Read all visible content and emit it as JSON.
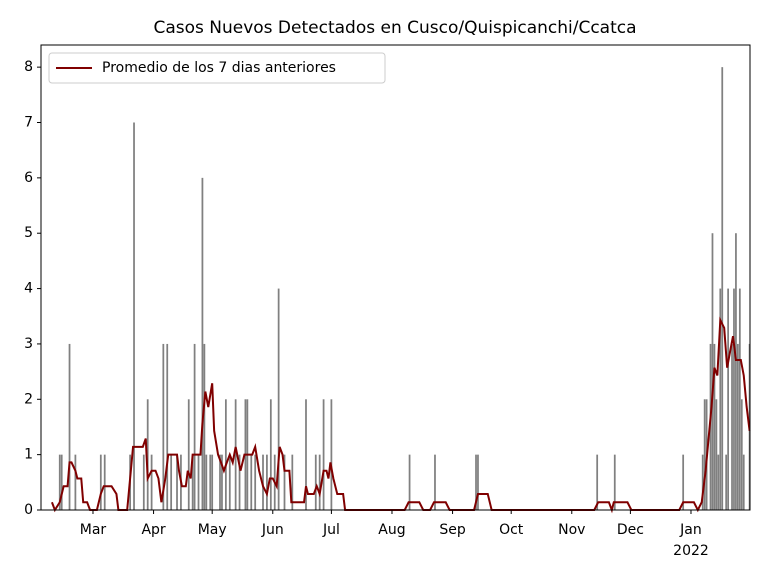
{
  "chart_data": {
    "type": "bar",
    "title": "Casos Nuevos Detectados en Cusco/Quispicanchi/Ccatca",
    "x": [
      -17,
      -16,
      -12,
      -9,
      4,
      6,
      19,
      21,
      26,
      28,
      30,
      36,
      38,
      40,
      43,
      45,
      49,
      51,
      52,
      54,
      56,
      57,
      58,
      60,
      61,
      65,
      66,
      68,
      70,
      73,
      75,
      78,
      79,
      81,
      83,
      87,
      89,
      91,
      93,
      95,
      98,
      102,
      109,
      114,
      116,
      118,
      122,
      162,
      175,
      196,
      197,
      258,
      267,
      302,
      312,
      313,
      314,
      316,
      317,
      318,
      319,
      320,
      321,
      322,
      324,
      325,
      327,
      328,
      329,
      330,
      331,
      332,
      333,
      336
    ],
    "values": [
      1,
      1,
      3,
      1,
      1,
      1,
      1,
      7,
      1,
      2,
      1,
      3,
      3,
      1,
      1,
      1,
      2,
      1,
      3,
      1,
      6,
      3,
      1,
      1,
      1,
      1,
      1,
      2,
      1,
      2,
      1,
      2,
      2,
      1,
      1,
      1,
      1,
      2,
      1,
      4,
      1,
      1,
      2,
      1,
      1,
      2,
      2,
      1,
      1,
      1,
      1,
      1,
      1,
      1,
      1,
      2,
      2,
      3,
      5,
      3,
      2,
      1,
      4,
      8,
      1,
      4,
      3,
      4,
      5,
      3,
      4,
      2,
      1,
      3
    ],
    "color": "#808080",
    "series": [
      {
        "name": "Promedio de los 7 dias anteriores",
        "color": "#800000",
        "x": [
          -21,
          -19.5,
          -17,
          -15,
          -13,
          -12,
          -11,
          -9,
          -8,
          -6,
          -5,
          -3,
          -1.5,
          2,
          4,
          5.5,
          9.5,
          12,
          13,
          17.5,
          20.5,
          25.5,
          27,
          28,
          30,
          32,
          33.5,
          35,
          37,
          38.5,
          43,
          44,
          45.5,
          47.5,
          48.5,
          50,
          51,
          55,
          56,
          57.5,
          59,
          61,
          62,
          64,
          65.5,
          67,
          68.5,
          70,
          71.5,
          73,
          75.5,
          77.5,
          81.5,
          83,
          85,
          87,
          89,
          90.5,
          92,
          94,
          95.5,
          97,
          98,
          100.5,
          101.5,
          108,
          109,
          110,
          113,
          114.5,
          116,
          118,
          119.5,
          120.5,
          121.5,
          123,
          125,
          128,
          129,
          159.5,
          161.5,
          167,
          169,
          172.5,
          174.5,
          180.5,
          182.5,
          195,
          197,
          202,
          204,
          256.5,
          258.5,
          264,
          265.5,
          266.5,
          273.5,
          275.5,
          300,
          302,
          307.5,
          309.5,
          311.5,
          313.5,
          315,
          316.5,
          318,
          319.5,
          321,
          323,
          324.5,
          326,
          327.5,
          329,
          331.5,
          333,
          334.5,
          336
        ],
        "values": [
          0.14,
          0,
          0.14,
          0.43,
          0.43,
          0.86,
          0.86,
          0.71,
          0.57,
          0.57,
          0.14,
          0.14,
          0,
          0,
          0.29,
          0.43,
          0.43,
          0.29,
          0,
          0,
          1.14,
          1.14,
          1.29,
          0.57,
          0.71,
          0.71,
          0.57,
          0.14,
          0.57,
          1.0,
          1.0,
          0.71,
          0.43,
          0.43,
          0.71,
          0.57,
          1.0,
          1.0,
          1.57,
          2.14,
          1.86,
          2.29,
          1.43,
          1.0,
          0.86,
          0.71,
          0.86,
          1.0,
          0.86,
          1.14,
          0.71,
          1.0,
          1.0,
          1.14,
          0.71,
          0.43,
          0.29,
          0.57,
          0.57,
          0.43,
          1.14,
          1.0,
          0.71,
          0.71,
          0.14,
          0.14,
          0.43,
          0.29,
          0.29,
          0.43,
          0.29,
          0.71,
          0.71,
          0.57,
          0.86,
          0.57,
          0.29,
          0.29,
          0,
          0,
          0.14,
          0.14,
          0,
          0,
          0.14,
          0.14,
          0,
          0,
          0.29,
          0.29,
          0,
          0,
          0.14,
          0.14,
          0,
          0.14,
          0.14,
          0,
          0,
          0.14,
          0.14,
          0,
          0.14,
          0.71,
          1.29,
          1.86,
          2.57,
          2.43,
          3.43,
          3.29,
          2.57,
          2.86,
          3.14,
          2.71,
          2.71,
          2.43,
          1.86,
          1.43
        ]
      }
    ],
    "xlim": [
      -26.6,
      336.2
    ],
    "xticks": [
      {
        "value": 0,
        "label": "Mar"
      },
      {
        "value": 31,
        "label": "Apr"
      },
      {
        "value": 61,
        "label": "May"
      },
      {
        "value": 92,
        "label": "Jun"
      },
      {
        "value": 122,
        "label": "Jul"
      },
      {
        "value": 153,
        "label": "Aug"
      },
      {
        "value": 184,
        "label": "Sep"
      },
      {
        "value": 214,
        "label": "Oct"
      },
      {
        "value": 245,
        "label": "Nov"
      },
      {
        "value": 275,
        "label": "Dec"
      },
      {
        "value": 306,
        "label": "Jan"
      }
    ],
    "xtick_year": {
      "value": 306,
      "label": "2022"
    },
    "ylim": [
      0,
      8.4
    ],
    "yticks": [
      0,
      1,
      2,
      3,
      4,
      5,
      6,
      7,
      8
    ],
    "legend": "upper left"
  }
}
